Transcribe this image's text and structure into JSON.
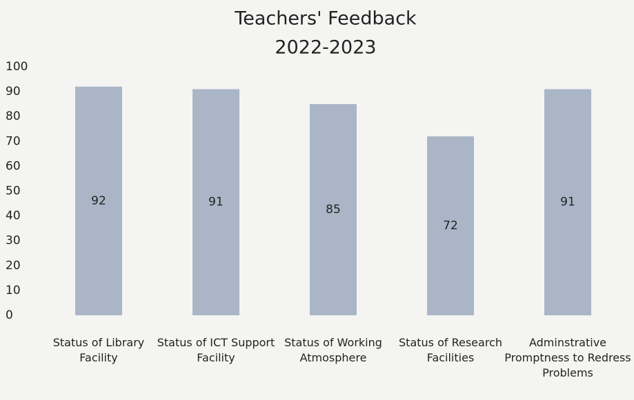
{
  "chart_data": {
    "type": "bar",
    "title": "Teachers' Feedback",
    "subtitle": "2022-2023",
    "categories": [
      "Status of Library Facility",
      "Status of ICT Support Facility",
      "Status of Working Atmosphere",
      "Status of Research Facilities",
      "Adminstrative Promptness to Redress Problems"
    ],
    "values": [
      92,
      91,
      85,
      72,
      91
    ],
    "color": "#aab6c7",
    "ylim": [
      0,
      100
    ],
    "yticks": [
      0,
      10,
      20,
      30,
      40,
      50,
      60,
      70,
      80,
      90,
      100
    ],
    "grid": false
  }
}
